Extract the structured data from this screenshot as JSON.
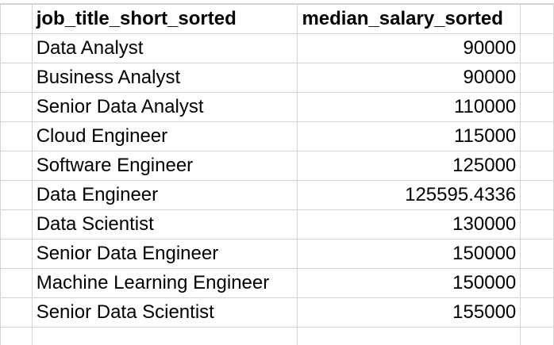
{
  "sheet": {
    "header": {
      "col_a": "job_title_short_sorted",
      "col_b": "median_salary_sorted"
    },
    "rows": [
      {
        "job_title": "Data Analyst",
        "median_salary": "90000"
      },
      {
        "job_title": "Business Analyst",
        "median_salary": "90000"
      },
      {
        "job_title": "Senior Data Analyst",
        "median_salary": "110000"
      },
      {
        "job_title": "Cloud Engineer",
        "median_salary": "115000"
      },
      {
        "job_title": "Software Engineer",
        "median_salary": "125000"
      },
      {
        "job_title": "Data Engineer",
        "median_salary": "125595.4336"
      },
      {
        "job_title": "Data Scientist",
        "median_salary": "130000"
      },
      {
        "job_title": "Senior Data Engineer",
        "median_salary": "150000"
      },
      {
        "job_title": "Machine Learning Engineer",
        "median_salary": "150000"
      },
      {
        "job_title": "Senior Data Scientist",
        "median_salary": "155000"
      }
    ],
    "colors": {
      "gridline": "#d4d4d4",
      "text": "#000000",
      "background": "#ffffff"
    }
  }
}
